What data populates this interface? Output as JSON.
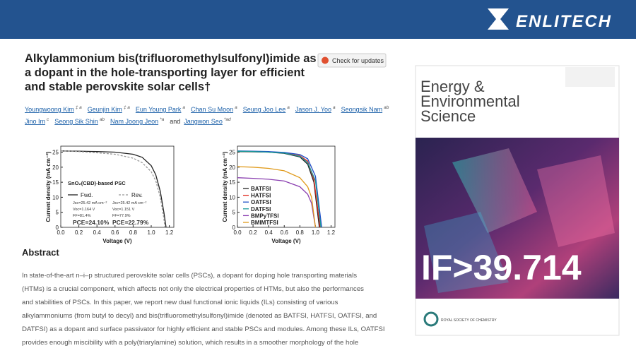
{
  "brand": "ENLITECH",
  "paper": {
    "title_lines": [
      "Alkylammonium bis(trifluoromethylsulfonyl)imide as",
      "a dopant in the hole-transporting layer for efficient",
      "and stable perovskite solar cells†"
    ],
    "update_button": "Check for updates",
    "authors": [
      {
        "name": "Youngwoong Kim",
        "affil": "‡ a"
      },
      {
        "name": "Geunjin Kim",
        "affil": "‡ a"
      },
      {
        "name": "Eun Young Park",
        "affil": "a"
      },
      {
        "name": "Chan Su Moon",
        "affil": "a"
      },
      {
        "name": "Seung Joo Lee",
        "affil": "a"
      },
      {
        "name": "Jason J. Yoo",
        "affil": "a"
      },
      {
        "name": "Seongsik Nam",
        "affil": "ab"
      },
      {
        "name": "Jino Im",
        "affil": "c"
      },
      {
        "name": "Seong Sik Shin",
        "affil": "ab"
      },
      {
        "name": "Nam Joong Jeon",
        "affil": "*a"
      },
      {
        "name": "Jangwon Seo",
        "affil": "*ad"
      }
    ],
    "and_text": "and",
    "abstract_heading": "Abstract",
    "abstract_lines": [
      "In state-of-the-art n–i–p structured perovskite solar cells (PSCs), a dopant for doping hole transporting materials",
      "(HTMs) is a crucial component, which affects not only the electrical properties of HTMs, but also the performances",
      "and stabilities of PSCs. In this paper, we report new dual functional ionic liquids (ILs) consisting of various",
      "alkylammoniums (from butyl to decyl) and bis(trifluoromethylsulfonyl)imide (denoted as BATFSI, HATFSI, OATFSI, and",
      "DATFSI) as a dopant and surface passivator for highly efficient and stable PSCs and modules. Among these ILs, OATFSI",
      "provides enough miscibility with a poly(triarylamine) solution, which results in a smoother morphology of the hole"
    ]
  },
  "cover": {
    "title_lines": [
      "Energy &",
      "Environmental",
      "Science"
    ],
    "impact": "IF>39.714",
    "publisher": "ROYAL SOCIETY OF CHEMISTRY"
  },
  "chart_data": [
    {
      "type": "line",
      "x_label": "Voltage (V)",
      "y_label": "Current density (mA cm⁻²)",
      "xlim": [
        0,
        1.25
      ],
      "ylim": [
        0,
        27
      ],
      "xticks": [
        {
          "value": 0,
          "label": "0.0"
        },
        0.2,
        0.4,
        0.6,
        0.8,
        {
          "value": 1,
          "label": "1.0"
        },
        1.2
      ],
      "yticks": [
        0,
        5,
        10,
        15,
        20,
        25
      ],
      "annotations": [
        "SnO₂(CBD)-based PSC",
        "Jsc=25.42 mA cm⁻²",
        "Voc=1.164 V",
        "FF=81.4%",
        "PCE=24.10%",
        "Jsc=25.42 mA cm⁻²",
        "Voc=1.151 V",
        "FF=77.9%",
        "PCE=22.79%"
      ],
      "series": [
        {
          "name": "Fwd.",
          "color": "#222222",
          "dash": false,
          "x": [
            0,
            0.2,
            0.4,
            0.6,
            0.8,
            0.9,
            1.0,
            1.05,
            1.1,
            1.14,
            1.164
          ],
          "values": [
            25.4,
            25.3,
            25.2,
            25.0,
            24.3,
            23.3,
            20.5,
            17.5,
            12,
            5,
            0
          ]
        },
        {
          "name": "Rev.",
          "color": "#999999",
          "dash": true,
          "x": [
            0,
            0.2,
            0.4,
            0.6,
            0.8,
            0.9,
            1.0,
            1.05,
            1.1,
            1.14,
            1.151
          ],
          "values": [
            25.4,
            25.2,
            24.8,
            24.3,
            23.0,
            21.5,
            18.5,
            15.5,
            10,
            3,
            0
          ]
        }
      ]
    },
    {
      "type": "line",
      "x_label": "Voltage (V)",
      "y_label": "Current density (mA cm⁻²)",
      "xlim": [
        0,
        1.25
      ],
      "ylim": [
        0,
        27
      ],
      "xticks": [
        {
          "value": 0,
          "label": "0.0"
        },
        0.2,
        0.4,
        0.6,
        0.8,
        {
          "value": 1,
          "label": "1.0"
        },
        1.2
      ],
      "yticks": [
        0,
        5,
        10,
        15,
        20,
        25
      ],
      "series": [
        {
          "name": "BATFSI",
          "color": "#222222",
          "x": [
            0,
            0.2,
            0.4,
            0.6,
            0.8,
            0.9,
            0.98,
            1.05
          ],
          "values": [
            25.2,
            25.1,
            25.0,
            24.6,
            23.4,
            21,
            15,
            0
          ]
        },
        {
          "name": "HATFSI",
          "color": "#e0281e",
          "x": [
            0,
            0.2,
            0.4,
            0.6,
            0.8,
            0.9,
            0.98,
            1.06
          ],
          "values": [
            25.3,
            25.2,
            25.1,
            24.8,
            23.8,
            22,
            16,
            0
          ]
        },
        {
          "name": "OATFSI",
          "color": "#1f4fc8",
          "x": [
            0,
            0.2,
            0.4,
            0.6,
            0.8,
            0.9,
            1.0,
            1.08
          ],
          "values": [
            25.4,
            25.3,
            25.2,
            24.9,
            24.2,
            22.8,
            17,
            0
          ]
        },
        {
          "name": "DATFSI",
          "color": "#1a9a9a",
          "x": [
            0,
            0.2,
            0.4,
            0.6,
            0.8,
            0.9,
            1.0,
            1.07
          ],
          "values": [
            25.3,
            25.2,
            25.0,
            24.7,
            23.6,
            21.5,
            15.5,
            0
          ]
        },
        {
          "name": "BMPyTFSI",
          "color": "#8a3fb0",
          "x": [
            0,
            0.2,
            0.4,
            0.6,
            0.8,
            0.9,
            0.95,
            1.0
          ],
          "values": [
            16.5,
            16.3,
            16.0,
            15.4,
            13.5,
            11,
            8,
            0
          ]
        },
        {
          "name": "BMIMTFSI",
          "color": "#e09a1a",
          "x": [
            0,
            0.2,
            0.4,
            0.6,
            0.8,
            0.9,
            0.95,
            1.0
          ],
          "values": [
            20.2,
            20.0,
            19.6,
            18.8,
            16.5,
            13.5,
            10,
            0
          ]
        }
      ]
    }
  ]
}
